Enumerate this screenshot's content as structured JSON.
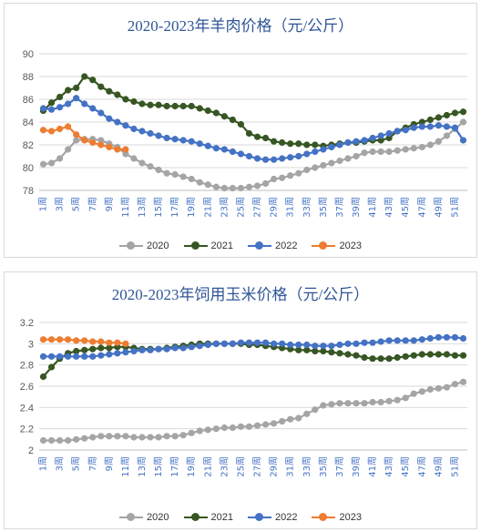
{
  "chart_data": [
    {
      "type": "line",
      "title": "2020-2023年羊肉价格（元/公斤）",
      "ylim": [
        78,
        90
      ],
      "yticks": [
        78,
        80,
        82,
        84,
        86,
        88,
        90
      ],
      "xticks": [
        "1周",
        "3周",
        "5周",
        "7周",
        "9周",
        "11周",
        "13周",
        "15周",
        "17周",
        "19周",
        "21周",
        "23周",
        "25周",
        "27周",
        "29周",
        "31周",
        "33周",
        "35周",
        "37周",
        "39周",
        "41周",
        "43周",
        "45周",
        "47周",
        "49周",
        "51周"
      ],
      "grid": true,
      "legend_position": "bottom",
      "series": [
        {
          "name": "2020",
          "color": "#a5a5a5",
          "values": [
            80.3,
            80.4,
            80.8,
            81.6,
            82.4,
            82.5,
            82.5,
            82.4,
            82.1,
            81.8,
            81.2,
            80.8,
            80.4,
            80.1,
            79.8,
            79.5,
            79.4,
            79.2,
            79.0,
            78.7,
            78.5,
            78.3,
            78.2,
            78.2,
            78.2,
            78.3,
            78.4,
            78.6,
            79.0,
            79.1,
            79.3,
            79.5,
            79.8,
            80.0,
            80.2,
            80.4,
            80.6,
            80.8,
            81.0,
            81.3,
            81.4,
            81.4,
            81.4,
            81.5,
            81.6,
            81.7,
            81.8,
            82.0,
            82.3,
            82.8,
            83.4,
            84.0
          ]
        },
        {
          "name": "2021",
          "color": "#375623",
          "values": [
            85.0,
            85.7,
            86.2,
            86.8,
            87.0,
            88.0,
            87.7,
            87.1,
            86.7,
            86.4,
            86.0,
            85.8,
            85.6,
            85.5,
            85.5,
            85.4,
            85.4,
            85.4,
            85.4,
            85.2,
            85.0,
            84.8,
            84.5,
            84.2,
            83.8,
            83.0,
            82.7,
            82.6,
            82.3,
            82.2,
            82.1,
            82.1,
            82.0,
            82.0,
            81.9,
            82.0,
            82.1,
            82.2,
            82.2,
            82.3,
            82.4,
            82.4,
            82.6,
            83.2,
            83.5,
            83.8,
            84.0,
            84.2,
            84.4,
            84.6,
            84.8,
            84.9
          ]
        },
        {
          "name": "2022",
          "color": "#4472c4",
          "values": [
            85.2,
            85.1,
            85.3,
            85.6,
            86.1,
            85.6,
            85.2,
            84.8,
            84.3,
            84.0,
            83.7,
            83.4,
            83.2,
            83.0,
            82.8,
            82.6,
            82.5,
            82.4,
            82.3,
            82.1,
            81.9,
            81.7,
            81.6,
            81.4,
            81.2,
            81.0,
            80.8,
            80.7,
            80.7,
            80.8,
            80.9,
            81.0,
            81.2,
            81.4,
            81.6,
            81.8,
            82.0,
            82.2,
            82.3,
            82.4,
            82.6,
            82.8,
            83.0,
            83.2,
            83.3,
            83.5,
            83.6,
            83.6,
            83.7,
            83.6,
            83.5,
            82.4
          ]
        },
        {
          "name": "2023",
          "color": "#ed7d31",
          "values": [
            83.3,
            83.2,
            83.4,
            83.6,
            82.9,
            82.4,
            82.2,
            82.0,
            81.8,
            81.6,
            81.6
          ]
        }
      ]
    },
    {
      "type": "line",
      "title": "2020-2023年饲用玉米价格（元/公斤）",
      "ylim": [
        2,
        3.2
      ],
      "yticks": [
        2,
        2.2,
        2.4,
        2.6,
        2.8,
        3,
        3.2
      ],
      "xticks": [
        "1周",
        "3周",
        "5周",
        "7周",
        "9周",
        "11周",
        "13周",
        "15周",
        "17周",
        "19周",
        "21周",
        "23周",
        "25周",
        "27周",
        "29周",
        "31周",
        "33周",
        "35周",
        "37周",
        "39周",
        "41周",
        "43周",
        "45周",
        "47周",
        "49周",
        "51周"
      ],
      "grid": true,
      "legend_position": "bottom",
      "series": [
        {
          "name": "2020",
          "color": "#a5a5a5",
          "values": [
            2.09,
            2.09,
            2.09,
            2.09,
            2.1,
            2.11,
            2.12,
            2.13,
            2.13,
            2.13,
            2.13,
            2.12,
            2.12,
            2.12,
            2.12,
            2.13,
            2.13,
            2.14,
            2.16,
            2.18,
            2.19,
            2.2,
            2.21,
            2.21,
            2.22,
            2.22,
            2.23,
            2.24,
            2.25,
            2.27,
            2.29,
            2.3,
            2.34,
            2.38,
            2.42,
            2.43,
            2.44,
            2.44,
            2.44,
            2.44,
            2.45,
            2.45,
            2.46,
            2.47,
            2.49,
            2.53,
            2.55,
            2.57,
            2.58,
            2.59,
            2.62,
            2.64
          ]
        },
        {
          "name": "2021",
          "color": "#375623",
          "values": [
            2.69,
            2.78,
            2.86,
            2.91,
            2.93,
            2.94,
            2.95,
            2.96,
            2.96,
            2.97,
            2.97,
            2.96,
            2.95,
            2.95,
            2.95,
            2.96,
            2.97,
            2.98,
            2.99,
            3.0,
            3.0,
            3.0,
            3.0,
            3.0,
            3.0,
            2.99,
            2.99,
            2.98,
            2.97,
            2.96,
            2.95,
            2.94,
            2.94,
            2.93,
            2.93,
            2.92,
            2.91,
            2.9,
            2.89,
            2.87,
            2.86,
            2.86,
            2.86,
            2.87,
            2.88,
            2.89,
            2.9,
            2.9,
            2.9,
            2.9,
            2.89,
            2.89
          ]
        },
        {
          "name": "2022",
          "color": "#4472c4",
          "values": [
            2.88,
            2.88,
            2.88,
            2.88,
            2.88,
            2.88,
            2.88,
            2.89,
            2.9,
            2.91,
            2.92,
            2.93,
            2.94,
            2.94,
            2.95,
            2.95,
            2.96,
            2.96,
            2.97,
            2.98,
            2.99,
            3.0,
            3.0,
            3.0,
            3.01,
            3.01,
            3.01,
            3.01,
            3.0,
            3.0,
            2.99,
            2.99,
            2.99,
            2.98,
            2.98,
            2.98,
            2.99,
            3.0,
            3.0,
            3.01,
            3.01,
            3.02,
            3.03,
            3.03,
            3.03,
            3.03,
            3.04,
            3.05,
            3.06,
            3.06,
            3.06,
            3.05
          ]
        },
        {
          "name": "2023",
          "color": "#ed7d31",
          "values": [
            3.04,
            3.04,
            3.04,
            3.04,
            3.03,
            3.03,
            3.02,
            3.02,
            3.01,
            3.01,
            3.0
          ]
        }
      ]
    }
  ]
}
